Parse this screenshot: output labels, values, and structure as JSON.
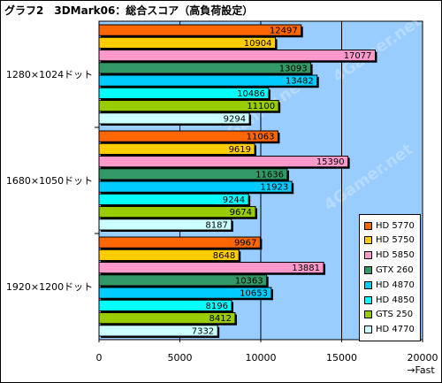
{
  "chart_data": {
    "type": "bar",
    "orientation": "horizontal",
    "title": "グラフ2　3DMark06：総合スコア（高負荷設定）",
    "xlabel": "→Fast",
    "ylabel": "",
    "xlim": [
      0,
      20000
    ],
    "xticks": [
      "0",
      "5000",
      "10000",
      "15000",
      "20000"
    ],
    "grid": true,
    "legend_position": "bottom-right",
    "categories": [
      "1280×1024ドット",
      "1680×1050ドット",
      "1920×1200ドット"
    ],
    "series": [
      {
        "name": "HD 5770",
        "color": "#ff6600",
        "values": [
          12497,
          11063,
          9967
        ]
      },
      {
        "name": "HD 5750",
        "color": "#ffcc00",
        "values": [
          10904,
          9619,
          8648
        ]
      },
      {
        "name": "HD 5850",
        "color": "#ff99cc",
        "values": [
          17077,
          15390,
          13881
        ]
      },
      {
        "name": "GTX 260",
        "color": "#339966",
        "values": [
          13093,
          11636,
          10363
        ]
      },
      {
        "name": "HD 4870",
        "color": "#00ccff",
        "values": [
          13482,
          11923,
          10653
        ]
      },
      {
        "name": "HD 4850",
        "color": "#00ffff",
        "values": [
          10486,
          9244,
          8196
        ]
      },
      {
        "name": "GTS 250",
        "color": "#99cc00",
        "values": [
          11100,
          9674,
          8412
        ]
      },
      {
        "name": "HD 4770",
        "color": "#ccffff",
        "values": [
          9294,
          8187,
          7332
        ]
      }
    ],
    "colors": {
      "plot_background": "#99ccff",
      "watermark": "4Gamer.net"
    }
  }
}
